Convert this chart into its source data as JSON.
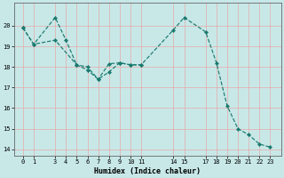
{
  "xlabel": "Humidex (Indice chaleur)",
  "bg_color": "#c8e8e8",
  "line_color": "#1a7a6e",
  "grid_color": "#e8a8a8",
  "curve1_x": [
    0,
    1,
    3,
    4,
    5,
    6,
    7,
    8,
    9,
    10,
    11
  ],
  "curve1_y": [
    19.9,
    19.1,
    20.4,
    19.3,
    18.1,
    17.85,
    17.4,
    17.75,
    18.2,
    18.1,
    18.1
  ],
  "curve2_x": [
    0,
    1,
    3,
    5,
    6,
    7,
    8,
    9,
    10,
    11,
    14,
    15,
    17,
    18,
    19,
    20,
    21,
    22,
    23
  ],
  "curve2_y": [
    19.9,
    19.1,
    19.3,
    18.1,
    18.0,
    17.4,
    18.15,
    18.2,
    18.1,
    18.1,
    19.8,
    20.4,
    19.7,
    18.2,
    16.1,
    15.0,
    14.7,
    14.25,
    14.1
  ],
  "ylim": [
    13.7,
    21.1
  ],
  "yticks": [
    14,
    15,
    16,
    17,
    18,
    19,
    20
  ],
  "xticks": [
    0,
    1,
    3,
    4,
    5,
    6,
    7,
    8,
    9,
    10,
    11,
    14,
    15,
    17,
    18,
    19,
    20,
    21,
    22,
    23
  ],
  "xlim": [
    -0.8,
    24.0
  ],
  "tick_fontsize": 5.0,
  "label_fontsize": 6.0
}
